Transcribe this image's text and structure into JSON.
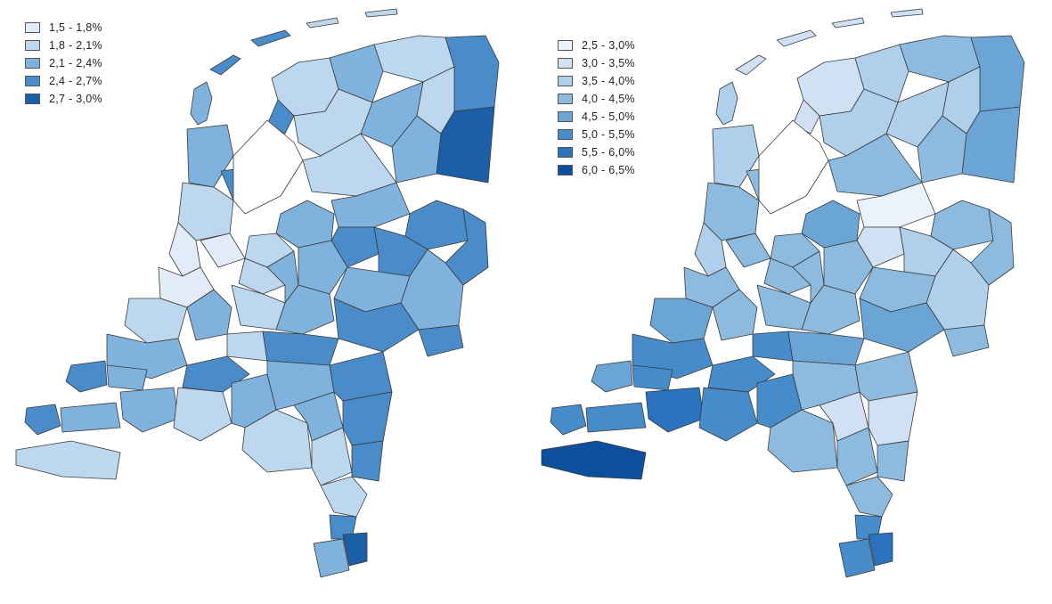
{
  "maps": [
    {
      "legend": [
        {
          "label": "1,5 - 1,8%",
          "color": "#e1ecf8"
        },
        {
          "label": "1,8 - 2,1%",
          "color": "#bdd7ee"
        },
        {
          "label": "2,1 - 2,4%",
          "color": "#7fb2dd"
        },
        {
          "label": "2,4 - 2,7%",
          "color": "#4a8cca"
        },
        {
          "label": "2,7 - 3,0%",
          "color": "#1a5fa8"
        }
      ]
    },
    {
      "legend": [
        {
          "label": "2,5 - 3,0%",
          "color": "#eaf2fb"
        },
        {
          "label": "3,0 - 3,5%",
          "color": "#cfe1f3"
        },
        {
          "label": "3,5 - 4,0%",
          "color": "#b0cfea"
        },
        {
          "label": "4,0 - 4,5%",
          "color": "#8dbbe0"
        },
        {
          "label": "4,5 - 5,0%",
          "color": "#6aa5d6"
        },
        {
          "label": "5,0 - 5,5%",
          "color": "#468ccb"
        },
        {
          "label": "5,5 - 6,0%",
          "color": "#2a72bd"
        },
        {
          "label": "6,0 - 6,5%",
          "color": "#0d4f9c"
        }
      ]
    }
  ]
}
